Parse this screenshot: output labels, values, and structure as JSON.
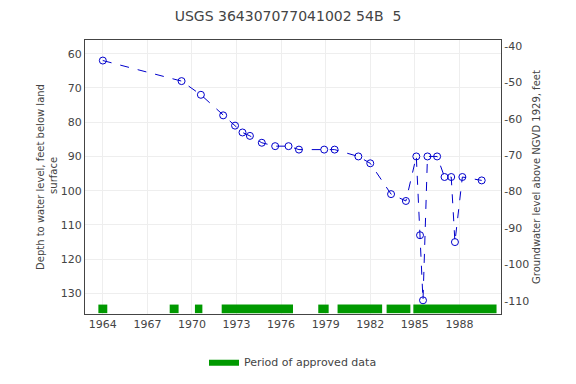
{
  "chart_data": {
    "type": "line",
    "title": "USGS 364307077041002 54B  5",
    "ylabel": "Depth to water level, feet below land\n surface",
    "y2label": "Groundwater level above NGVD 1929, feet",
    "x": [
      1964.0,
      1969.3,
      1970.6,
      1972.1,
      1972.9,
      1973.4,
      1973.9,
      1974.7,
      1975.6,
      1976.5,
      1977.2,
      1978.9,
      1979.6,
      1981.2,
      1982.0,
      1983.4,
      1984.4,
      1985.1,
      1985.35,
      1985.55,
      1985.85,
      1986.5,
      1987.0,
      1987.45,
      1987.7,
      1988.2,
      1989.5
    ],
    "series": [
      {
        "values": [
          62,
          68,
          72,
          78,
          81,
          83,
          84,
          86,
          87,
          87,
          88,
          88,
          88,
          90,
          92,
          101,
          103,
          90,
          113,
          132,
          90,
          90,
          96,
          96,
          115,
          96,
          97
        ],
        "color": "#0000cc",
        "marker": "open circle",
        "line_style": "dashed"
      },
      {
        "name": "Period of approved data",
        "type": "span",
        "color": "#009900",
        "ranges": [
          [
            1963.7,
            1964.3
          ],
          [
            1968.5,
            1969.1
          ],
          [
            1970.2,
            1970.7
          ],
          [
            1972.0,
            1976.8
          ],
          [
            1978.5,
            1979.2
          ],
          [
            1979.8,
            1982.8
          ],
          [
            1983.1,
            1984.7
          ],
          [
            1984.9,
            1990.5
          ]
        ]
      }
    ],
    "xlim": [
      1962.8,
      1990.8
    ],
    "xticks": [
      1964,
      1967,
      1970,
      1973,
      1976,
      1979,
      1982,
      1985,
      1988
    ],
    "ylim": [
      136,
      56
    ],
    "yticks": [
      60,
      70,
      80,
      90,
      100,
      110,
      120,
      130
    ],
    "y2lim": [
      -113.6,
      -38.4
    ],
    "y2ticks": [
      -40,
      -50,
      -60,
      -70,
      -80,
      -90,
      -100,
      -110
    ],
    "grid": true,
    "legend": "bottom"
  }
}
